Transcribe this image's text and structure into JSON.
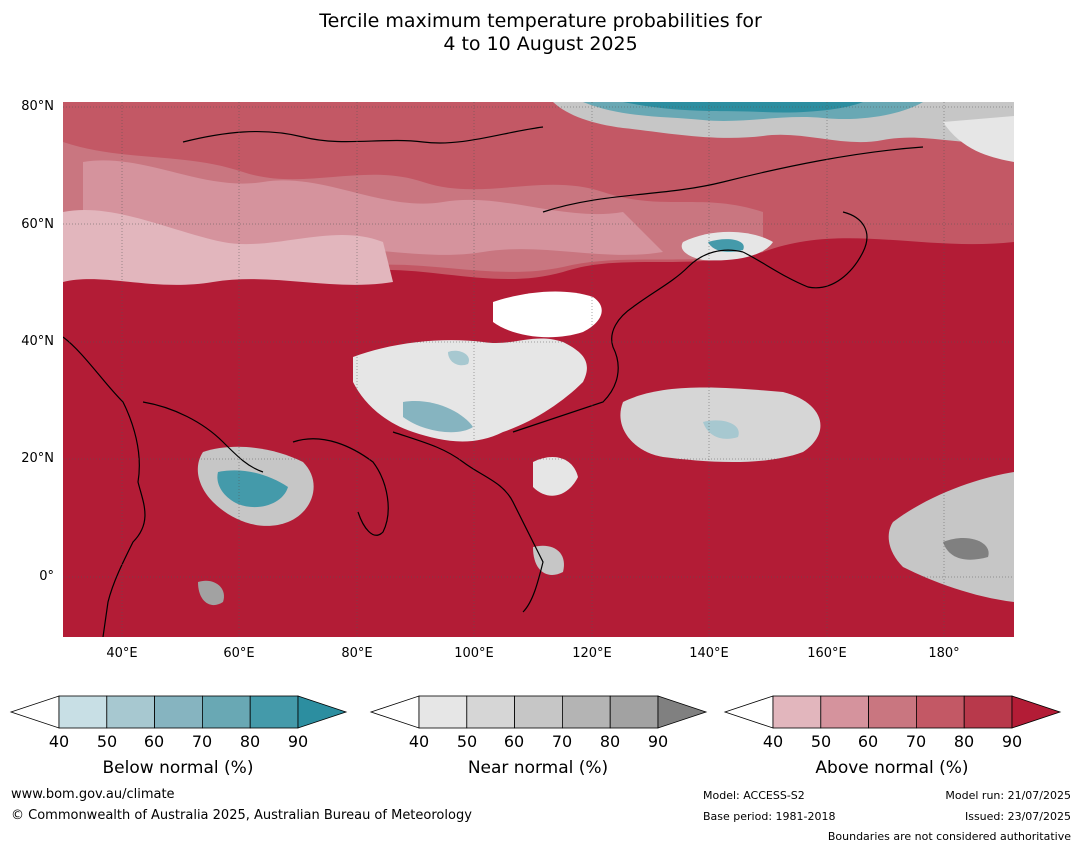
{
  "title": {
    "line1": "Tercile maximum temperature probabilities for",
    "line2": "4 to 10 August 2025"
  },
  "map": {
    "lat_labels": [
      "80°N",
      "60°N",
      "40°N",
      "20°N",
      "0°"
    ],
    "lon_labels": [
      "40°E",
      "60°E",
      "80°E",
      "100°E",
      "120°E",
      "140°E",
      "160°E",
      "180°"
    ],
    "colors": {
      "below": [
        "#c8dfe5",
        "#a7c8d0",
        "#86b4c0",
        "#69a8b4",
        "#449aaa",
        "#2c8ea0"
      ],
      "near": [
        "#e6e6e6",
        "#d6d6d6",
        "#c6c6c6",
        "#b4b4b4",
        "#a2a2a2",
        "#808080"
      ],
      "above": [
        "#e2b6bd",
        "#d5939d",
        "#c97680",
        "#c35865",
        "#b8394b",
        "#b31c36"
      ]
    }
  },
  "colorbars": [
    {
      "label": "Below normal (%)",
      "ticks": [
        "40",
        "50",
        "60",
        "70",
        "80",
        "90"
      ],
      "scheme": "below"
    },
    {
      "label": "Near normal (%)",
      "ticks": [
        "40",
        "50",
        "60",
        "70",
        "80",
        "90"
      ],
      "scheme": "near"
    },
    {
      "label": "Above normal (%)",
      "ticks": [
        "40",
        "50",
        "60",
        "70",
        "80",
        "90"
      ],
      "scheme": "above"
    }
  ],
  "footer": {
    "website": "www.bom.gov.au/climate",
    "copyright": "© Commonwealth of Australia 2025, Australian Bureau of Meteorology",
    "model": "Model: ACCESS-S2",
    "base_period": "Base period: 1981-2018",
    "model_run": "Model run: 21/07/2025",
    "issued": "Issued: 23/07/2025",
    "boundaries": "Boundaries are not considered authoritative"
  }
}
